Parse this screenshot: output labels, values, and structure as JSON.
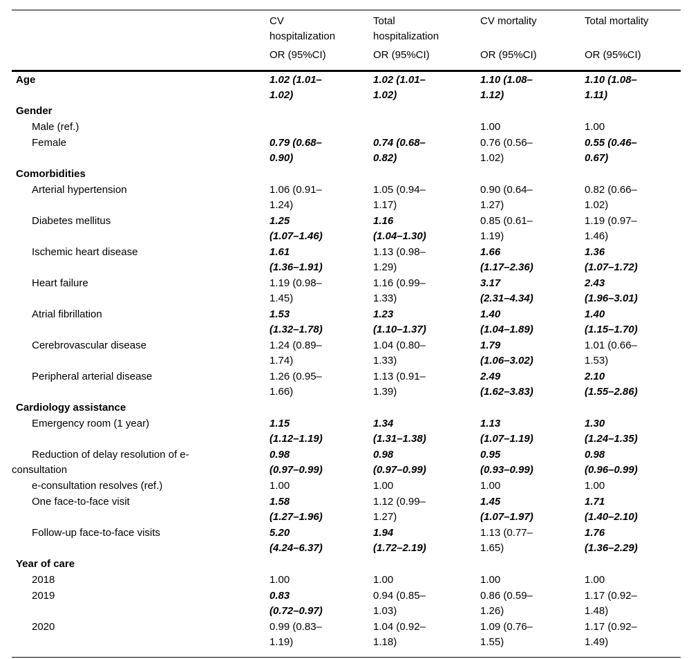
{
  "colors": {
    "text": "#000000",
    "background": "#ffffff",
    "rule": "#000000"
  },
  "table": {
    "columns": [
      {
        "title": "CV\nhospitalization",
        "subtitle": "OR (95%CI)"
      },
      {
        "title": "Total\nhospitalization",
        "subtitle": "OR (95%CI)"
      },
      {
        "title": "CV mortality",
        "subtitle": "OR (95%CI)"
      },
      {
        "title": "Total mortality",
        "subtitle": "OR (95%CI)"
      }
    ],
    "rows": [
      {
        "label": "Age",
        "level": "section",
        "cells": [
          {
            "text": "1.02 (1.01–\n1.02)",
            "significant": true
          },
          {
            "text": "1.02 (1.01–\n1.02)",
            "significant": true
          },
          {
            "text": "1.10 (1.08–\n1.12)",
            "significant": true
          },
          {
            "text": "1.10 (1.08–\n1.11)",
            "significant": true
          }
        ]
      },
      {
        "label": "Gender",
        "level": "section",
        "cells": [
          {
            "text": "",
            "significant": false
          },
          {
            "text": "",
            "significant": false
          },
          {
            "text": "",
            "significant": false
          },
          {
            "text": "",
            "significant": false
          }
        ]
      },
      {
        "label": "Male (ref.)",
        "level": "item",
        "cells": [
          {
            "text": "",
            "significant": false
          },
          {
            "text": "",
            "significant": false
          },
          {
            "text": "1.00",
            "significant": false
          },
          {
            "text": "1.00",
            "significant": false
          }
        ]
      },
      {
        "label": "Female",
        "level": "item",
        "cells": [
          {
            "text": "0.79 (0.68–\n0.90)",
            "significant": true
          },
          {
            "text": "0.74 (0.68–\n0.82)",
            "significant": true
          },
          {
            "text": "0.76 (0.56–\n1.02)",
            "significant": false
          },
          {
            "text": "0.55 (0.46–\n0.67)",
            "significant": true
          }
        ]
      },
      {
        "label": "Comorbidities",
        "level": "section",
        "cells": [
          {
            "text": "",
            "significant": false
          },
          {
            "text": "",
            "significant": false
          },
          {
            "text": "",
            "significant": false
          },
          {
            "text": "",
            "significant": false
          }
        ]
      },
      {
        "label": "Arterial hypertension",
        "level": "item",
        "cells": [
          {
            "text": "1.06 (0.91–\n1.24)",
            "significant": false
          },
          {
            "text": "1.05 (0.94–\n1.17)",
            "significant": false
          },
          {
            "text": "0.90 (0.64–\n1.27)",
            "significant": false
          },
          {
            "text": "0.82 (0.66–\n1.02)",
            "significant": false
          }
        ]
      },
      {
        "label": "Diabetes mellitus",
        "level": "item",
        "cells": [
          {
            "text": "1.25\n(1.07–1.46)",
            "significant": true
          },
          {
            "text": "1.16\n(1.04–1.30)",
            "significant": true
          },
          {
            "text": "0.85 (0.61–\n1.19)",
            "significant": false
          },
          {
            "text": "1.19 (0.97–\n1.46)",
            "significant": false
          }
        ]
      },
      {
        "label": "Ischemic heart disease",
        "level": "item",
        "cells": [
          {
            "text": "1.61\n(1.36–1.91)",
            "significant": true
          },
          {
            "text": "1.13 (0.98–\n1.29)",
            "significant": false
          },
          {
            "text": "1.66\n(1.17–2.36)",
            "significant": true
          },
          {
            "text": "1.36\n(1.07–1.72)",
            "significant": true
          }
        ]
      },
      {
        "label": "Heart failure",
        "level": "item",
        "cells": [
          {
            "text": "1.19 (0.98–\n1.45)",
            "significant": false
          },
          {
            "text": "1.16 (0.99–\n1.33)",
            "significant": false
          },
          {
            "text": "3.17\n(2.31–4.34)",
            "significant": true
          },
          {
            "text": "2.43\n(1.96–3.01)",
            "significant": true
          }
        ]
      },
      {
        "label": "Atrial fibrillation",
        "level": "item",
        "cells": [
          {
            "text": "1.53\n(1.32–1.78)",
            "significant": true
          },
          {
            "text": "1.23\n(1.10–1.37)",
            "significant": true
          },
          {
            "text": "1.40\n(1.04–1.89)",
            "significant": true
          },
          {
            "text": "1.40\n(1.15–1.70)",
            "significant": true
          }
        ]
      },
      {
        "label": "Cerebrovascular disease",
        "level": "item",
        "cells": [
          {
            "text": "1.24 (0.89–\n1.74)",
            "significant": false
          },
          {
            "text": "1.04 (0.80–\n1.33)",
            "significant": false
          },
          {
            "text": "1.79\n(1.06–3.02)",
            "significant": true
          },
          {
            "text": "1.01 (0.66–\n1.53)",
            "significant": false
          }
        ]
      },
      {
        "label": "Peripheral arterial disease",
        "level": "item",
        "cells": [
          {
            "text": "1.26 (0.95–\n1.66)",
            "significant": false
          },
          {
            "text": "1.13 (0.91–\n1.39)",
            "significant": false
          },
          {
            "text": "2.49\n(1.62–3.83)",
            "significant": true
          },
          {
            "text": "2.10\n(1.55–2.86)",
            "significant": true
          }
        ]
      },
      {
        "label": "Cardiology assistance",
        "level": "section",
        "cells": [
          {
            "text": "",
            "significant": false
          },
          {
            "text": "",
            "significant": false
          },
          {
            "text": "",
            "significant": false
          },
          {
            "text": "",
            "significant": false
          }
        ]
      },
      {
        "label": "Emergency room (1 year)",
        "level": "item",
        "cells": [
          {
            "text": "1.15\n(1.12–1.19)",
            "significant": true
          },
          {
            "text": "1.34\n(1.31–1.38)",
            "significant": true
          },
          {
            "text": "1.13\n(1.07–1.19)",
            "significant": true
          },
          {
            "text": "1.30\n(1.24–1.35)",
            "significant": true
          }
        ]
      },
      {
        "label": "Reduction of delay resolution of e-\nconsultation",
        "level": "item",
        "cells": [
          {
            "text": "0.98\n(0.97–0.99)",
            "significant": true
          },
          {
            "text": "0.98\n(0.97–0.99)",
            "significant": true
          },
          {
            "text": "0.95\n(0.93–0.99)",
            "significant": true
          },
          {
            "text": "0.98\n(0.96–0.99)",
            "significant": true
          }
        ]
      },
      {
        "label": "e-consultation resolves (ref.)",
        "level": "item",
        "cells": [
          {
            "text": "1.00",
            "significant": false
          },
          {
            "text": "1.00",
            "significant": false
          },
          {
            "text": "1.00",
            "significant": false
          },
          {
            "text": "1.00",
            "significant": false
          }
        ]
      },
      {
        "label": "One face-to-face visit",
        "level": "item",
        "cells": [
          {
            "text": "1.58\n(1.27–1.96)",
            "significant": true
          },
          {
            "text": "1.12 (0.99–\n1.27)",
            "significant": false
          },
          {
            "text": "1.45\n(1.07–1.97)",
            "significant": true
          },
          {
            "text": "1.71\n(1.40–2.10)",
            "significant": true
          }
        ]
      },
      {
        "label": "Follow-up face-to-face visits",
        "level": "item",
        "cells": [
          {
            "text": "5.20\n(4.24–6.37)",
            "significant": true
          },
          {
            "text": "1.94\n(1.72–2.19)",
            "significant": true
          },
          {
            "text": "1.13 (0.77–\n1.65)",
            "significant": false
          },
          {
            "text": "1.76\n(1.36–2.29)",
            "significant": true
          }
        ]
      },
      {
        "label": "Year of care",
        "level": "section",
        "cells": [
          {
            "text": "",
            "significant": false
          },
          {
            "text": "",
            "significant": false
          },
          {
            "text": "",
            "significant": false
          },
          {
            "text": "",
            "significant": false
          }
        ]
      },
      {
        "label": "2018",
        "level": "item",
        "cells": [
          {
            "text": "1.00",
            "significant": false
          },
          {
            "text": "1.00",
            "significant": false
          },
          {
            "text": "1.00",
            "significant": false
          },
          {
            "text": "1.00",
            "significant": false
          }
        ]
      },
      {
        "label": "2019",
        "level": "item",
        "cells": [
          {
            "text": "0.83\n(0.72–0.97)",
            "significant": true
          },
          {
            "text": "0.94 (0.85–\n1.03)",
            "significant": false
          },
          {
            "text": "0.86 (0.59–\n1.26)",
            "significant": false
          },
          {
            "text": "1.17 (0.92–\n1.48)",
            "significant": false
          }
        ]
      },
      {
        "label": "2020",
        "level": "item",
        "cells": [
          {
            "text": "0.99 (0.83–\n1.19)",
            "significant": false
          },
          {
            "text": "1.04 (0.92–\n1.18)",
            "significant": false
          },
          {
            "text": "1.09 (0.76–\n1.55)",
            "significant": false
          },
          {
            "text": "1.17 (0.92–\n1.49)",
            "significant": false
          }
        ]
      }
    ]
  }
}
